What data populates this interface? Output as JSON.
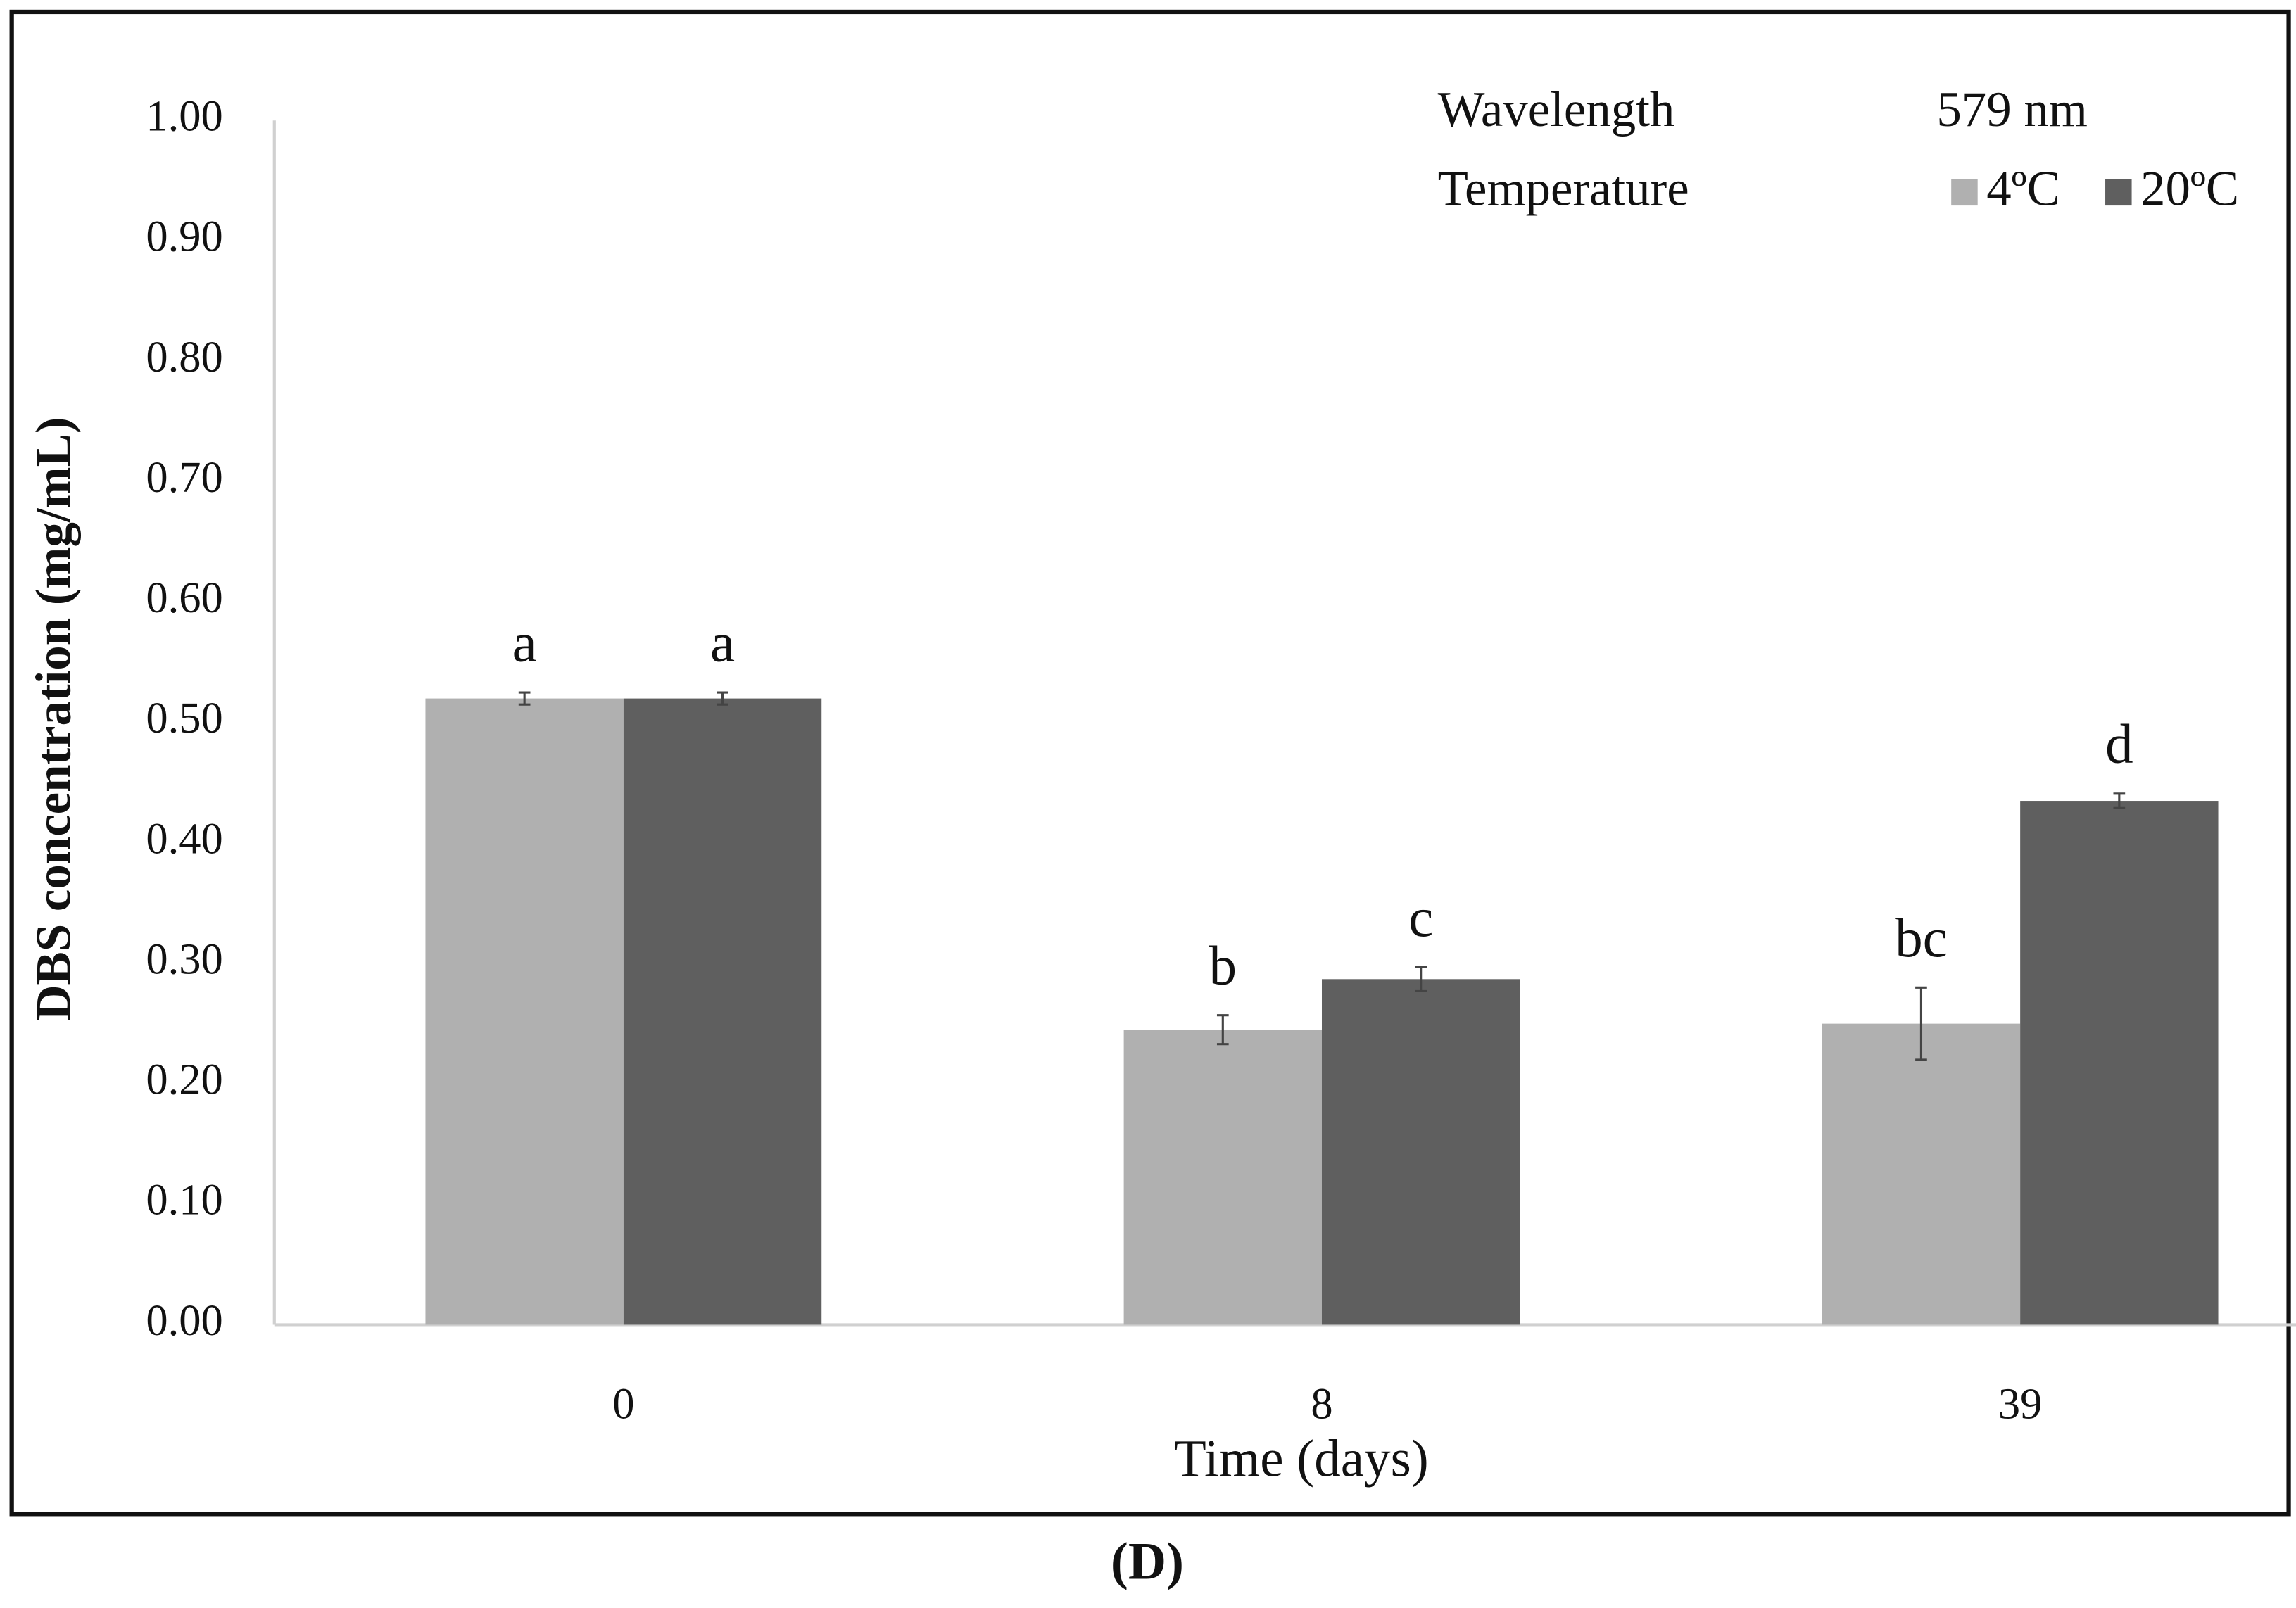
{
  "chart_data": {
    "type": "bar",
    "x_label": "Time (days)",
    "y_label": "DBS concentration (mg/mL)",
    "legend_header": {
      "left": "Wavelength",
      "right": "579 nm",
      "title": "Temperature"
    },
    "panel_label": "(D)",
    "categories": [
      "0",
      "8",
      "39"
    ],
    "series": [
      {
        "name": "4ºC",
        "color": "#b0b0b0",
        "values": [
          0.52,
          0.245,
          0.25
        ],
        "errors": [
          0.005,
          0.012,
          0.03
        ],
        "significance_letters": [
          "a",
          "b",
          "bc"
        ]
      },
      {
        "name": "20ºC",
        "color": "#5f5f5f",
        "values": [
          0.52,
          0.287,
          0.435
        ],
        "errors": [
          0.005,
          0.01,
          0.006
        ],
        "significance_letters": [
          "a",
          "c",
          "d"
        ]
      }
    ],
    "ylim": [
      0,
      1
    ],
    "yticks": [
      {
        "value": 0,
        "label": "0.00"
      },
      {
        "value": 0.1,
        "label": "0.10"
      },
      {
        "value": 0.2,
        "label": "0.20"
      },
      {
        "value": 0.3,
        "label": "0.30"
      },
      {
        "value": 0.4,
        "label": "0.40"
      },
      {
        "value": 0.5,
        "label": "0.50"
      },
      {
        "value": 0.6,
        "label": "0.60"
      },
      {
        "value": 0.7,
        "label": "0.70"
      },
      {
        "value": 0.8,
        "label": "0.80"
      },
      {
        "value": 0.9,
        "label": "0.90"
      },
      {
        "value": 1,
        "label": "1.00"
      }
    ],
    "grid": false
  }
}
